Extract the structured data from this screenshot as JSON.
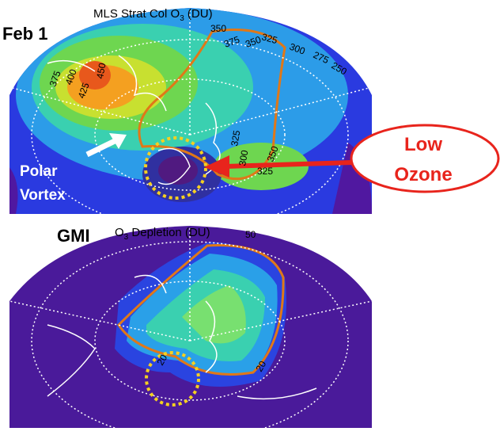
{
  "top_panel": {
    "title": {
      "text": "MLS Strat Col O",
      "sub": "3",
      "suffix": " (DU)"
    },
    "date": "Feb 1",
    "vortex_label": [
      "Polar",
      "Vortex"
    ],
    "callout": [
      "Low",
      "Ozone"
    ],
    "contour_labels": [
      "350",
      "325",
      "300",
      "275",
      "250",
      "375",
      "400",
      "425",
      "450",
      "375",
      "350",
      "325",
      "300",
      "350",
      "325"
    ]
  },
  "bottom_panel": {
    "model": "GMI",
    "title": {
      "text": "O",
      "sub": "3",
      "suffix": " Depletion (DU)"
    },
    "contour_labels": [
      "20",
      "20",
      "50"
    ]
  }
}
